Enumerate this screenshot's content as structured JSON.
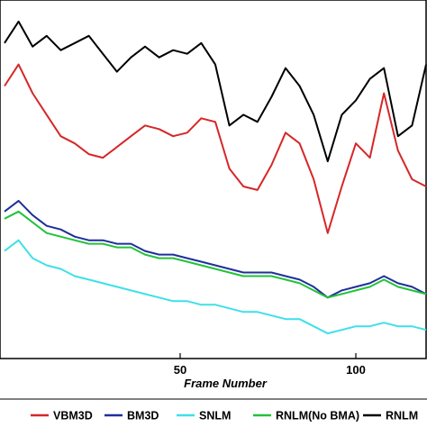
{
  "chart_data": {
    "type": "line",
    "title": "",
    "xlabel": "Frame Number",
    "ylabel": "",
    "xlim": [
      0,
      120
    ],
    "ylim": [
      0,
      10
    ],
    "x_ticks": [
      "50",
      "100"
    ],
    "grid": false,
    "legend_position": "bottom",
    "series": [
      {
        "name": "VBM3D",
        "color": "#d62728",
        "x": [
          0,
          4,
          8,
          12,
          16,
          20,
          24,
          28,
          32,
          36,
          40,
          44,
          48,
          52,
          56,
          60,
          64,
          68,
          72,
          76,
          80,
          84,
          88,
          92,
          96,
          100,
          104,
          108,
          112,
          116,
          120
        ],
        "y": [
          7.6,
          8.2,
          7.4,
          6.8,
          6.2,
          6.0,
          5.7,
          5.6,
          5.9,
          6.2,
          6.5,
          6.4,
          6.2,
          6.3,
          6.7,
          6.6,
          5.3,
          4.8,
          4.7,
          5.4,
          6.3,
          6.0,
          5.0,
          3.5,
          4.8,
          6.0,
          5.6,
          7.4,
          5.8,
          5.0,
          4.8
        ]
      },
      {
        "name": "BM3D",
        "color": "#1f2f9a",
        "x": [
          0,
          4,
          8,
          12,
          16,
          20,
          24,
          28,
          32,
          36,
          40,
          44,
          48,
          52,
          56,
          60,
          64,
          68,
          72,
          76,
          80,
          84,
          88,
          92,
          96,
          100,
          104,
          108,
          112,
          116,
          120
        ],
        "y": [
          4.1,
          4.4,
          4.0,
          3.7,
          3.6,
          3.4,
          3.3,
          3.3,
          3.2,
          3.2,
          3.0,
          2.9,
          2.9,
          2.8,
          2.7,
          2.6,
          2.5,
          2.4,
          2.4,
          2.4,
          2.3,
          2.2,
          2.0,
          1.7,
          1.9,
          2.0,
          2.1,
          2.3,
          2.1,
          2.0,
          1.8
        ]
      },
      {
        "name": "SNLM",
        "color": "#3fe0e8",
        "x": [
          0,
          4,
          8,
          12,
          16,
          20,
          24,
          28,
          32,
          36,
          40,
          44,
          48,
          52,
          56,
          60,
          64,
          68,
          72,
          76,
          80,
          84,
          88,
          92,
          96,
          100,
          104,
          108,
          112,
          116,
          120
        ],
        "y": [
          3.0,
          3.3,
          2.8,
          2.6,
          2.5,
          2.3,
          2.2,
          2.1,
          2.0,
          1.9,
          1.8,
          1.7,
          1.6,
          1.6,
          1.5,
          1.5,
          1.4,
          1.3,
          1.3,
          1.2,
          1.1,
          1.1,
          0.9,
          0.7,
          0.8,
          0.9,
          0.9,
          1.0,
          0.9,
          0.9,
          0.8
        ]
      },
      {
        "name": "RNLM(No BMA)",
        "color": "#22c23a",
        "x": [
          0,
          4,
          8,
          12,
          16,
          20,
          24,
          28,
          32,
          36,
          40,
          44,
          48,
          52,
          56,
          60,
          64,
          68,
          72,
          76,
          80,
          84,
          88,
          92,
          96,
          100,
          104,
          108,
          112,
          116,
          120
        ],
        "y": [
          3.9,
          4.1,
          3.8,
          3.5,
          3.4,
          3.3,
          3.2,
          3.2,
          3.1,
          3.1,
          2.9,
          2.8,
          2.8,
          2.7,
          2.6,
          2.5,
          2.4,
          2.3,
          2.3,
          2.3,
          2.2,
          2.1,
          1.9,
          1.7,
          1.8,
          1.9,
          2.0,
          2.2,
          2.0,
          1.9,
          1.8
        ]
      },
      {
        "name": "RNLM",
        "color": "#000000",
        "x": [
          0,
          4,
          8,
          12,
          16,
          20,
          24,
          28,
          32,
          36,
          40,
          44,
          48,
          52,
          56,
          60,
          64,
          68,
          72,
          76,
          80,
          84,
          88,
          92,
          96,
          100,
          104,
          108,
          112,
          116,
          120
        ],
        "y": [
          8.8,
          9.4,
          8.7,
          9.0,
          8.6,
          8.8,
          9.0,
          8.5,
          8.0,
          8.4,
          8.7,
          8.4,
          8.6,
          8.5,
          8.8,
          8.2,
          6.5,
          6.8,
          6.6,
          7.3,
          8.1,
          7.6,
          6.8,
          5.5,
          6.8,
          7.2,
          7.8,
          8.1,
          6.2,
          6.5,
          8.2
        ]
      }
    ]
  }
}
